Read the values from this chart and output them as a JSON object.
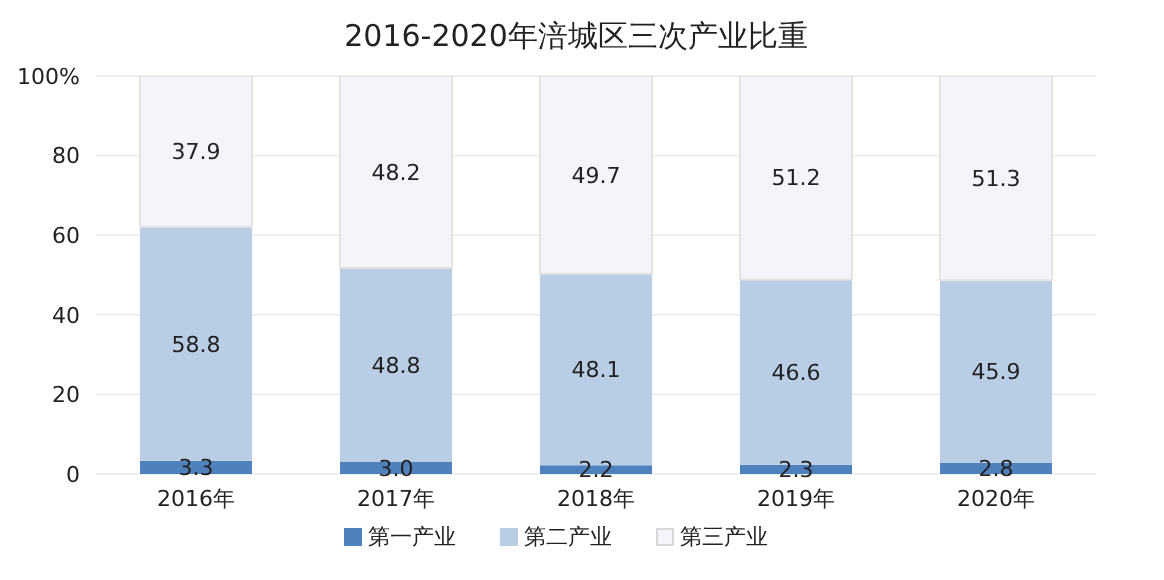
{
  "chart_data": {
    "type": "bar",
    "title": "2016-2020年涪城区三次产业比重",
    "stacked": true,
    "categories": [
      "2016年",
      "2017年",
      "2018年",
      "2019年",
      "2020年"
    ],
    "series": [
      {
        "name": "第一产业",
        "color": "#4f81bd",
        "values": [
          3.3,
          3.0,
          2.2,
          2.3,
          2.8
        ],
        "value_labels": [
          "3.3",
          "3.0",
          "2.2",
          "2.3",
          "2.8"
        ]
      },
      {
        "name": "第二产业",
        "color": "#b9cde5",
        "values": [
          58.8,
          48.8,
          48.1,
          46.6,
          45.9
        ],
        "value_labels": [
          "58.8",
          "48.8",
          "48.1",
          "46.6",
          "45.9"
        ]
      },
      {
        "name": "第三产业",
        "color": "#f3f5fa",
        "values": [
          37.9,
          48.2,
          49.7,
          51.2,
          51.3
        ],
        "value_labels": [
          "37.9",
          "48.2",
          "49.7",
          "51.2",
          "51.3"
        ]
      }
    ],
    "ylim": [
      0,
      100
    ],
    "yticks": [
      0,
      20,
      40,
      60,
      80,
      {
        "value": 100,
        "label": "100%"
      }
    ],
    "grid": "y",
    "legend": "bottom"
  }
}
